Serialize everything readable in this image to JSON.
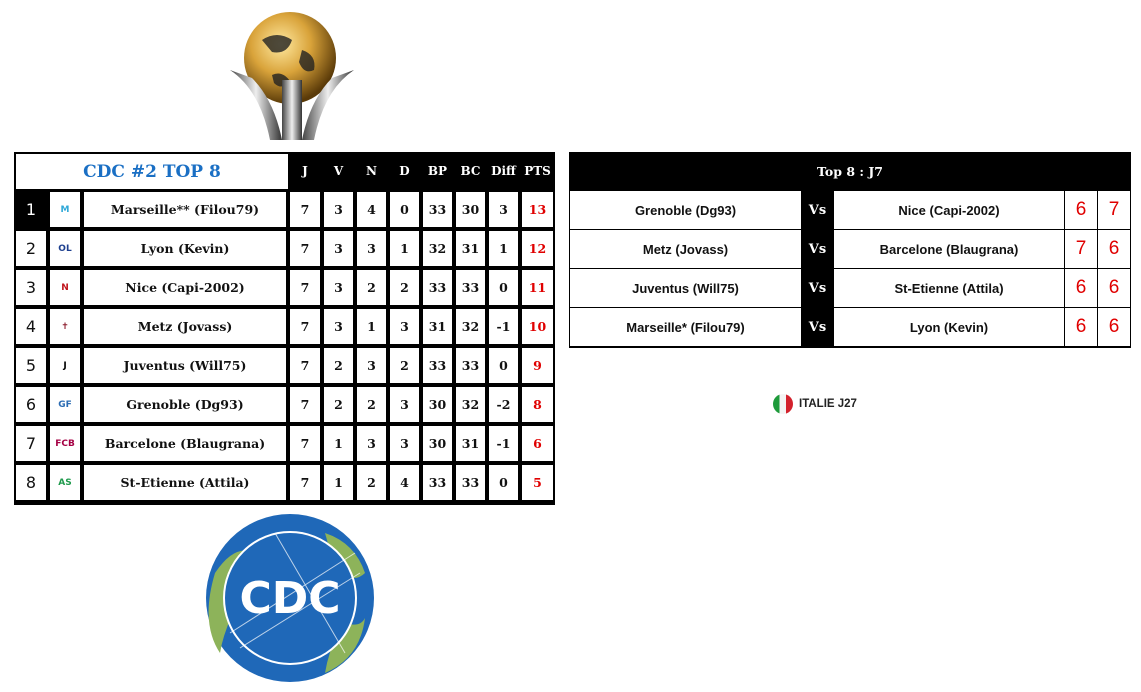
{
  "standings": {
    "title": "CDC #2 TOP 8",
    "columns": [
      "J",
      "V",
      "N",
      "D",
      "BP",
      "BC",
      "Diff",
      "PTS"
    ],
    "rows": [
      {
        "rank": "1",
        "team": "Marseille** (Filou79)",
        "logo": "marseille-crest",
        "stats": [
          "7",
          "3",
          "4",
          "0",
          "33",
          "30",
          "3",
          "13"
        ]
      },
      {
        "rank": "2",
        "team": "Lyon (Kevin)",
        "logo": "lyon-crest",
        "stats": [
          "7",
          "3",
          "3",
          "1",
          "32",
          "31",
          "1",
          "12"
        ]
      },
      {
        "rank": "3",
        "team": "Nice (Capi-2002)",
        "logo": "nice-crest",
        "stats": [
          "7",
          "3",
          "2",
          "2",
          "33",
          "33",
          "0",
          "11"
        ]
      },
      {
        "rank": "4",
        "team": "Metz (Jovass)",
        "logo": "metz-crest",
        "stats": [
          "7",
          "3",
          "1",
          "3",
          "31",
          "32",
          "-1",
          "10"
        ]
      },
      {
        "rank": "5",
        "team": "Juventus (Will75)",
        "logo": "juventus-crest",
        "stats": [
          "7",
          "2",
          "3",
          "2",
          "33",
          "33",
          "0",
          "9"
        ]
      },
      {
        "rank": "6",
        "team": "Grenoble (Dg93)",
        "logo": "grenoble-crest",
        "stats": [
          "7",
          "2",
          "2",
          "3",
          "30",
          "32",
          "-2",
          "8"
        ]
      },
      {
        "rank": "7",
        "team": "Barcelone (Blaugrana)",
        "logo": "barcelona-crest",
        "stats": [
          "7",
          "1",
          "3",
          "3",
          "30",
          "31",
          "-1",
          "6"
        ]
      },
      {
        "rank": "8",
        "team": "St-Etienne (Attila)",
        "logo": "saint-etienne-crest",
        "stats": [
          "7",
          "1",
          "2",
          "4",
          "33",
          "33",
          "0",
          "5"
        ]
      }
    ]
  },
  "matches": {
    "title": "Top 8 : J7",
    "vs_label": "Vs",
    "rows": [
      {
        "home": "Grenoble (Dg93)",
        "away": "Nice (Capi-2002)",
        "score_home": "6",
        "score_away": "7"
      },
      {
        "home": "Metz (Jovass)",
        "away": "Barcelone (Blaugrana)",
        "score_home": "7",
        "score_away": "6"
      },
      {
        "home": "Juventus (Will75)",
        "away": "St-Etienne (Attila)",
        "score_home": "6",
        "score_away": "6"
      },
      {
        "home": "Marseille* (Filou79)",
        "away": "Lyon (Kevin)",
        "score_home": "6",
        "score_away": "6"
      }
    ]
  },
  "italie_link": {
    "label": "ITALIE J27",
    "icon": "italy-flag-icon"
  },
  "logos": {
    "trophy": "club-world-cup-trophy",
    "cdc_logo": "CDC"
  },
  "colors": {
    "title_blue": "#1a6fc4",
    "points_red": "#e00000",
    "header_black": "#000000"
  }
}
